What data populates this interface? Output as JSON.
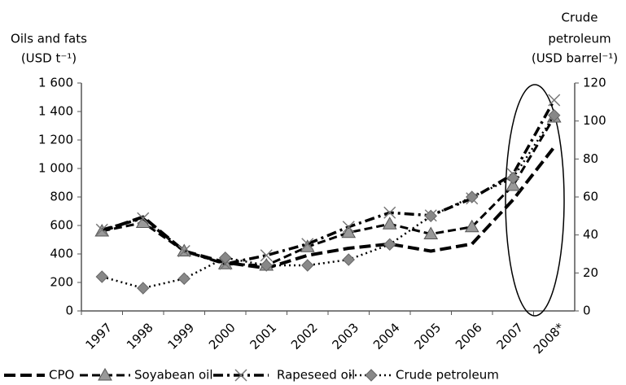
{
  "chart_data": {
    "type": "line",
    "y_label": [
      "Oils and fats",
      "(USD t⁻¹)"
    ],
    "y2_label": [
      "Crude",
      "petroleum",
      "(USD barrel⁻¹)"
    ],
    "categories": [
      "1997",
      "1998",
      "1999",
      "2000",
      "2001",
      "2002",
      "2003",
      "2004",
      "2005",
      "2006",
      "2007",
      "2008*"
    ],
    "series": [
      {
        "name": "CPO",
        "color": "#000000",
        "dash": "14 6",
        "width": 4,
        "marker": "none",
        "values": [
          560,
          660,
          420,
          340,
          300,
          390,
          440,
          470,
          420,
          470,
          780,
          1150
        ]
      },
      {
        "name": "Soyabean oil",
        "color": "#000000",
        "dash": "10 5",
        "width": 3,
        "marker": "triangle",
        "values": [
          560,
          620,
          420,
          330,
          320,
          450,
          550,
          610,
          540,
          590,
          880,
          1360
        ]
      },
      {
        "name": "Rapeseed oil",
        "color": "#000000",
        "dash": "12 5 3 5",
        "width": 3.5,
        "marker": "cross",
        "values": [
          570,
          650,
          420,
          330,
          390,
          470,
          590,
          690,
          670,
          790,
          960,
          1480
        ]
      },
      {
        "name": "Crude petroleum",
        "color": "#000000",
        "dash": "2 4",
        "width": 2.5,
        "marker": "diamond",
        "axis": "y2",
        "values": [
          18,
          12,
          17,
          28,
          24,
          24,
          27,
          35,
          50,
          60,
          70,
          103
        ]
      }
    ],
    "ylim": [
      0,
      1600
    ],
    "yticks": [
      0,
      200,
      400,
      600,
      800,
      {
        "value": 1000,
        "label": "1 000"
      },
      {
        "value": 1200,
        "label": "1 200"
      },
      {
        "value": 1400,
        "label": "1 400"
      },
      {
        "value": 1600,
        "label": "1 600"
      }
    ],
    "y2lim": [
      0,
      120
    ],
    "y2ticks": [
      0,
      20,
      40,
      60,
      80,
      100,
      120
    ],
    "grid": false,
    "legend": "bottom"
  }
}
